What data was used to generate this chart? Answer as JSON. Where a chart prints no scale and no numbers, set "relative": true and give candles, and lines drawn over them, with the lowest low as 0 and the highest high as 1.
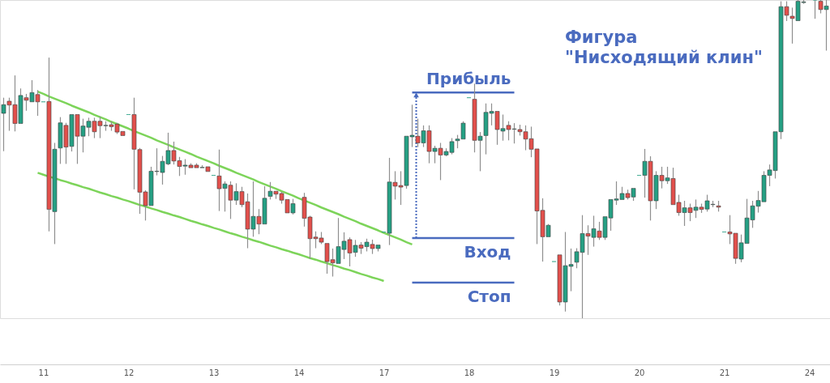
{
  "chart_data": {
    "type": "candlestick",
    "title": "Фигура\n\"Нисходящий клин\"",
    "relative": true,
    "tick_labels": "x",
    "categories": [
      null,
      null,
      null,
      null,
      null,
      null,
      null,
      "11",
      null,
      null,
      null,
      null,
      null,
      null,
      null,
      null,
      null,
      null,
      null,
      null,
      null,
      null,
      "12",
      null,
      null,
      null,
      null,
      null,
      null,
      null,
      null,
      null,
      null,
      null,
      null,
      null,
      null,
      "13",
      null,
      null,
      null,
      null,
      null,
      null,
      null,
      null,
      null,
      null,
      null,
      null,
      null,
      null,
      "14",
      null,
      null,
      null,
      null,
      null,
      null,
      null,
      null,
      null,
      null,
      null,
      null,
      null,
      null,
      "17",
      null,
      null,
      null,
      null,
      null,
      null,
      null,
      null,
      null,
      null,
      null,
      null,
      null,
      null,
      "18",
      null,
      null,
      null,
      null,
      null,
      null,
      null,
      null,
      null,
      null,
      null,
      null,
      null,
      null,
      "19",
      null,
      null,
      null,
      null,
      null,
      null,
      null,
      null,
      null,
      null,
      null,
      null,
      null,
      null,
      "20",
      null,
      null,
      null,
      null,
      null,
      null,
      null,
      null,
      null,
      null,
      null,
      null,
      null,
      null,
      "21",
      null,
      null,
      null,
      null,
      null,
      null,
      null,
      null,
      null,
      null,
      null,
      null,
      null,
      null,
      "24",
      null,
      null,
      null
    ],
    "ohlc": [
      [
        0.644,
        0.693,
        0.525,
        0.671
      ],
      [
        0.682,
        0.693,
        0.589,
        0.67
      ],
      [
        0.671,
        0.763,
        0.587,
        0.612
      ],
      [
        0.612,
        0.722,
        0.612,
        0.7
      ],
      [
        0.693,
        0.705,
        0.652,
        0.685
      ],
      [
        0.68,
        0.748,
        0.68,
        0.709
      ],
      [
        0.703,
        0.717,
        0.636,
        0.68
      ],
      [
        0.68,
        0.68,
        0.68,
        0.68
      ],
      [
        0.681,
        0.819,
        0.273,
        0.342
      ],
      [
        0.335,
        0.551,
        0.233,
        0.531
      ],
      [
        0.535,
        0.632,
        0.485,
        0.614
      ],
      [
        0.606,
        0.614,
        0.485,
        0.538
      ],
      [
        0.54,
        0.64,
        0.524,
        0.64
      ],
      [
        0.64,
        0.64,
        0.485,
        0.572
      ],
      [
        0.572,
        0.627,
        0.521,
        0.604
      ],
      [
        0.6,
        0.63,
        0.572,
        0.619
      ],
      [
        0.619,
        0.63,
        0.566,
        0.586
      ],
      [
        0.619,
        0.634,
        0.566,
        0.605
      ],
      [
        0.605,
        0.619,
        0.589,
        0.606
      ],
      [
        0.608,
        0.619,
        0.589,
        0.602
      ],
      [
        0.61,
        0.614,
        0.579,
        0.585
      ],
      [
        0.587,
        0.587,
        0.574,
        0.574
      ],
      [
        0.64,
        0.64,
        0.64,
        0.64
      ],
      [
        0.64,
        0.693,
        0.405,
        0.531
      ],
      [
        0.53,
        0.535,
        0.328,
        0.396
      ],
      [
        0.397,
        0.402,
        0.307,
        0.354
      ],
      [
        0.354,
        0.476,
        0.354,
        0.462
      ],
      [
        0.461,
        0.534,
        0.449,
        0.462
      ],
      [
        0.458,
        0.51,
        0.42,
        0.493
      ],
      [
        0.485,
        0.583,
        0.481,
        0.527
      ],
      [
        0.527,
        0.555,
        0.483,
        0.494
      ],
      [
        0.495,
        0.507,
        0.447,
        0.477
      ],
      [
        0.478,
        0.5,
        0.451,
        0.481
      ],
      [
        0.481,
        0.487,
        0.473,
        0.473
      ],
      [
        0.481,
        0.487,
        0.473,
        0.473
      ],
      [
        0.473,
        0.481,
        0.472,
        0.474
      ],
      [
        0.476,
        0.476,
        0.458,
        0.461
      ],
      [
        0.449,
        0.449,
        0.449,
        0.449
      ],
      [
        0.447,
        0.53,
        0.337,
        0.407
      ],
      [
        0.408,
        0.43,
        0.335,
        0.422
      ],
      [
        0.418,
        0.43,
        0.312,
        0.371
      ],
      [
        0.371,
        0.424,
        0.356,
        0.398
      ],
      [
        0.398,
        0.413,
        0.349,
        0.357
      ],
      [
        0.366,
        0.392,
        0.22,
        0.28
      ],
      [
        0.28,
        0.43,
        0.256,
        0.32
      ],
      [
        0.32,
        0.343,
        0.264,
        0.296
      ],
      [
        0.296,
        0.415,
        0.296,
        0.377
      ],
      [
        0.383,
        0.428,
        0.373,
        0.399
      ],
      [
        0.399,
        0.402,
        0.375,
        0.39
      ],
      [
        0.392,
        0.397,
        0.36,
        0.371
      ],
      [
        0.373,
        0.373,
        0.331,
        0.331
      ],
      [
        0.331,
        0.375,
        0.326,
        0.36
      ],
      null,
      [
        0.38,
        0.394,
        0.288,
        0.314
      ],
      [
        0.318,
        0.322,
        0.186,
        0.25
      ],
      [
        0.255,
        0.273,
        0.22,
        0.25
      ],
      [
        0.252,
        0.271,
        0.233,
        0.239
      ],
      [
        0.235,
        0.235,
        0.14,
        0.178
      ],
      [
        0.184,
        0.219,
        0.131,
        0.174
      ],
      [
        0.172,
        0.315,
        0.172,
        0.225
      ],
      [
        0.216,
        0.27,
        0.186,
        0.242
      ],
      [
        0.247,
        0.254,
        0.163,
        0.205
      ],
      [
        0.207,
        0.246,
        0.193,
        0.229
      ],
      [
        0.23,
        0.239,
        0.202,
        0.22
      ],
      [
        0.225,
        0.25,
        0.21,
        0.239
      ],
      [
        0.232,
        0.247,
        0.202,
        0.219
      ],
      [
        0.219,
        0.233,
        0.21,
        0.23
      ],
      [
        0.271,
        0.271,
        0.271,
        0.271
      ],
      [
        0.267,
        0.504,
        0.23,
        0.428
      ],
      [
        0.427,
        0.462,
        0.373,
        0.415
      ],
      [
        0.417,
        0.462,
        0.356,
        0.412
      ],
      [
        0.417,
        0.572,
        0.407,
        0.572
      ],
      [
        0.57,
        0.671,
        0.538,
        0.575
      ],
      [
        0.572,
        0.627,
        0.538,
        0.551
      ],
      [
        0.551,
        0.606,
        0.538,
        0.589
      ],
      [
        0.589,
        0.606,
        0.487,
        0.524
      ],
      [
        0.524,
        0.542,
        0.487,
        0.534
      ],
      [
        0.534,
        0.551,
        0.434,
        0.513
      ],
      [
        0.513,
        0.534,
        0.509,
        0.524
      ],
      [
        0.521,
        0.566,
        0.515,
        0.555
      ],
      [
        0.558,
        0.576,
        0.534,
        0.563
      ],
      [
        0.563,
        0.619,
        0.563,
        0.613
      ],
      [
        0.693,
        0.693,
        0.693,
        0.693
      ],
      [
        0.688,
        0.737,
        0.521,
        0.559
      ],
      [
        0.559,
        0.585,
        0.462,
        0.572
      ],
      [
        0.574,
        0.675,
        0.515,
        0.647
      ],
      [
        0.644,
        0.675,
        0.606,
        0.65
      ],
      [
        0.65,
        0.65,
        0.545,
        0.593
      ],
      [
        0.588,
        0.64,
        0.558,
        0.596
      ],
      [
        0.606,
        0.619,
        0.559,
        0.593
      ],
      [
        0.594,
        0.613,
        0.549,
        0.595
      ],
      [
        0.593,
        0.608,
        0.574,
        0.586
      ],
      [
        0.586,
        0.606,
        0.528,
        0.563
      ],
      [
        0.564,
        0.602,
        0.506,
        0.531
      ],
      [
        0.532,
        0.535,
        0.233,
        0.337
      ],
      [
        0.339,
        0.377,
        0.178,
        0.256
      ],
      [
        0.256,
        0.296,
        0.254,
        0.292
      ],
      [
        0.178,
        0.178,
        0.178,
        0.178
      ],
      [
        0.199,
        0.199,
        0.04,
        0.051
      ],
      [
        0.051,
        0.271,
        0.021,
        0.165
      ],
      [
        0.163,
        0.219,
        0.085,
        0.169
      ],
      [
        0.176,
        0.22,
        0.157,
        0.209
      ],
      [
        0.207,
        0.324,
        0.0,
        0.266
      ],
      [
        0.266,
        0.292,
        0.199,
        0.258
      ],
      [
        0.254,
        0.322,
        0.225,
        0.281
      ],
      [
        0.274,
        0.303,
        0.246,
        0.254
      ],
      [
        0.254,
        0.322,
        0.246,
        0.319
      ],
      [
        0.315,
        0.373,
        0.275,
        0.373
      ],
      [
        0.371,
        0.43,
        0.356,
        0.375
      ],
      [
        0.373,
        0.413,
        0.373,
        0.392
      ],
      [
        0.392,
        0.404,
        0.373,
        0.379
      ],
      [
        0.381,
        0.408,
        0.369,
        0.408
      ],
      [
        0.449,
        0.449,
        0.449,
        0.449
      ],
      [
        0.449,
        0.532,
        0.379,
        0.493
      ],
      [
        0.493,
        0.509,
        0.307,
        0.369
      ],
      [
        0.369,
        0.462,
        0.343,
        0.449
      ],
      [
        0.449,
        0.476,
        0.408,
        0.432
      ],
      [
        0.432,
        0.476,
        0.422,
        0.441
      ],
      [
        0.439,
        0.473,
        0.354,
        0.357
      ],
      [
        0.364,
        0.388,
        0.322,
        0.332
      ],
      [
        0.332,
        0.369,
        0.29,
        0.347
      ],
      [
        0.347,
        0.36,
        0.305,
        0.332
      ],
      [
        0.339,
        0.373,
        0.315,
        0.349
      ],
      [
        0.349,
        0.36,
        0.331,
        0.342
      ],
      [
        0.343,
        0.388,
        0.335,
        0.369
      ],
      [
        0.357,
        0.369,
        0.349,
        0.358
      ],
      [
        0.353,
        0.369,
        0.335,
        0.349
      ],
      [
        0.271,
        0.271,
        0.271,
        0.271
      ],
      [
        0.271,
        0.324,
        0.233,
        0.265
      ],
      [
        0.267,
        0.267,
        0.171,
        0.188
      ],
      [
        0.186,
        0.263,
        0.176,
        0.237
      ],
      [
        0.235,
        0.375,
        0.235,
        0.315
      ],
      [
        0.309,
        0.369,
        0.284,
        0.353
      ],
      [
        0.352,
        0.4,
        0.332,
        0.37
      ],
      [
        0.366,
        0.462,
        0.366,
        0.449
      ],
      [
        0.449,
        0.483,
        0.415,
        0.466
      ],
      [
        0.464,
        0.586,
        0.439,
        0.586
      ],
      [
        0.586,
        0.996,
        0.563,
        0.979
      ],
      [
        0.979,
        0.996,
        0.934,
        0.952
      ],
      [
        0.949,
        0.976,
        0.863,
        0.942
      ],
      [
        0.935,
        1.0,
        0.935,
        0.996
      ],
      [
        0.992,
        1.0,
        0.988,
        0.994
      ],
      null,
      [
        1.0,
        1.0,
        0.941,
        1.0
      ],
      [
        0.996,
        1.0,
        0.958,
        0.97
      ],
      [
        0.97,
        1.0,
        0.841,
        0.981
      ]
    ],
    "colors": [
      "#26a084",
      "#e2504c",
      "#e2504c",
      "#26a084",
      "#e2504c",
      "#26a084",
      "#e2504c",
      "#26a084",
      "#e2504c",
      "#26a084",
      "#26a084",
      "#e2504c",
      "#26a084",
      "#e2504c",
      "#26a084",
      "#26a084",
      "#e2504c",
      "#e2504c",
      "#26a084",
      "#e2504c",
      "#e2504c",
      "#e2504c",
      "#26a084",
      "#e2504c",
      "#e2504c",
      "#e2504c",
      "#26a084",
      "#26a084",
      "#26a084",
      "#26a084",
      "#e2504c",
      "#e2504c",
      "#26a084",
      "#e2504c",
      "#e2504c",
      "#26a084",
      "#e2504c",
      "#26a084",
      "#e2504c",
      "#26a084",
      "#e2504c",
      "#26a084",
      "#e2504c",
      "#e2504c",
      "#26a084",
      "#e2504c",
      "#26a084",
      "#26a084",
      "#e2504c",
      "#e2504c",
      "#e2504c",
      "#26a084",
      null,
      "#e2504c",
      "#e2504c",
      "#e2504c",
      "#e2504c",
      "#e2504c",
      "#e2504c",
      "#26a084",
      "#26a084",
      "#e2504c",
      "#26a084",
      "#e2504c",
      "#26a084",
      "#e2504c",
      "#26a084",
      "#26a084",
      "#26a084",
      "#e2504c",
      "#e2504c",
      "#26a084",
      "#26a084",
      "#e2504c",
      "#26a084",
      "#e2504c",
      "#26a084",
      "#e2504c",
      "#26a084",
      "#26a084",
      "#26a084",
      "#26a084",
      "#26a084",
      "#e2504c",
      "#26a084",
      "#26a084",
      "#26a084",
      "#e2504c",
      "#26a084",
      "#e2504c",
      "#26a084",
      "#e2504c",
      "#e2504c",
      "#e2504c",
      "#e2504c",
      "#e2504c",
      "#26a084",
      "#26a084",
      "#e2504c",
      "#26a084",
      "#26a084",
      "#26a084",
      "#26a084",
      "#e2504c",
      "#26a084",
      "#e2504c",
      "#26a084",
      "#26a084",
      "#26a084",
      "#26a084",
      "#e2504c",
      "#26a084",
      "#26a084",
      "#26a084",
      "#e2504c",
      "#26a084",
      "#e2504c",
      "#26a084",
      "#e2504c",
      "#e2504c",
      "#26a084",
      "#e2504c",
      "#26a084",
      "#e2504c",
      "#26a084",
      "#26a084",
      "#e2504c",
      "#26a084",
      "#e2504c",
      "#e2504c",
      "#26a084",
      "#26a084",
      "#26a084",
      "#26a084",
      "#26a084",
      "#26a084",
      "#26a084",
      "#26a084",
      "#e2504c",
      "#e2504c",
      "#26a084",
      "#26a084",
      null,
      "#26a084",
      "#e2504c",
      "#26a084"
    ],
    "series": [
      {
        "type": "line",
        "color": "#7dd45a",
        "values": [
          null,
          null,
          null,
          null,
          null,
          null,
          0.712,
          0.705,
          0.697,
          0.69,
          0.683,
          0.676,
          0.668,
          0.661,
          0.654,
          0.647,
          0.639,
          0.632,
          0.625,
          0.617,
          0.61,
          0.603,
          0.596,
          0.588,
          0.581,
          0.574,
          0.567,
          0.559,
          0.552,
          0.545,
          0.537,
          0.53,
          0.523,
          0.516,
          0.508,
          0.501,
          0.494,
          0.487,
          0.479,
          0.472,
          0.465,
          0.457,
          0.45,
          0.443,
          0.436,
          0.428,
          0.421,
          0.414,
          0.407,
          0.399,
          0.392,
          0.385,
          0.377,
          0.37,
          0.363,
          0.356,
          0.348,
          0.341,
          0.334,
          0.327,
          0.319,
          0.312,
          0.305,
          0.297,
          0.29,
          0.283,
          0.276,
          0.268,
          0.261,
          0.254,
          0.247,
          0.239,
          0.232,
          null,
          null,
          null,
          null,
          null,
          null,
          null,
          null,
          null,
          null,
          null,
          null,
          null,
          null,
          null,
          null,
          null,
          null,
          null,
          null,
          null,
          null,
          null,
          null,
          null,
          null,
          null,
          null,
          null,
          null,
          null,
          null,
          null,
          null,
          null,
          null,
          null,
          null,
          null,
          null,
          null,
          null,
          null,
          null,
          null,
          null,
          null,
          null,
          null,
          null,
          null,
          null,
          null,
          null,
          null,
          null,
          null,
          null,
          null,
          null,
          null,
          null,
          null,
          null,
          null,
          null,
          null,
          null,
          null,
          null,
          null,
          null,
          null
        ]
      },
      {
        "type": "line",
        "color": "#7dd45a",
        "values": [
          null,
          null,
          null,
          null,
          null,
          null,
          0.457,
          0.451,
          0.445,
          0.44,
          0.434,
          0.429,
          0.423,
          0.418,
          0.412,
          0.407,
          0.401,
          0.395,
          0.39,
          0.384,
          0.379,
          0.373,
          0.368,
          0.362,
          0.356,
          0.351,
          0.345,
          0.34,
          0.334,
          0.329,
          0.323,
          0.318,
          0.312,
          0.306,
          0.301,
          0.295,
          0.29,
          0.284,
          0.279,
          0.273,
          0.267,
          0.262,
          0.256,
          0.251,
          0.245,
          0.24,
          0.234,
          0.228,
          0.223,
          0.217,
          0.212,
          0.206,
          0.201,
          0.195,
          0.189,
          0.184,
          0.178,
          0.173,
          0.167,
          0.162,
          0.156,
          0.151,
          0.145,
          0.139,
          0.134,
          0.128,
          0.123,
          0.117,
          null,
          null,
          null,
          null,
          null,
          null,
          null,
          null,
          null,
          null,
          null,
          null,
          null,
          null,
          null,
          null,
          null,
          null,
          null,
          null,
          null,
          null,
          null,
          null,
          null,
          null,
          null,
          null,
          null,
          null,
          null,
          null,
          null,
          null,
          null,
          null,
          null,
          null,
          null,
          null,
          null,
          null,
          null,
          null,
          null,
          null,
          null,
          null,
          null,
          null,
          null,
          null,
          null,
          null,
          null,
          null,
          null,
          null,
          null,
          null,
          null,
          null,
          null,
          null,
          null,
          null,
          null,
          null,
          null,
          null,
          null,
          null,
          null,
          null,
          null,
          null,
          null,
          null
        ]
      },
      {
        "type": "line",
        "name": "Прибыль",
        "color": "#4a6bbf",
        "values": [
          null,
          null,
          null,
          null,
          null,
          null,
          null,
          null,
          null,
          null,
          null,
          null,
          null,
          null,
          null,
          null,
          null,
          null,
          null,
          null,
          null,
          null,
          null,
          null,
          null,
          null,
          null,
          null,
          null,
          null,
          null,
          null,
          null,
          null,
          null,
          null,
          null,
          null,
          null,
          null,
          null,
          null,
          null,
          null,
          null,
          null,
          null,
          null,
          null,
          null,
          null,
          null,
          null,
          null,
          null,
          null,
          null,
          null,
          null,
          null,
          null,
          null,
          null,
          null,
          null,
          null,
          null,
          null,
          null,
          null,
          null,
          null,
          0.709,
          0.709,
          0.709,
          0.709,
          0.709,
          0.709,
          0.709,
          0.709,
          0.709,
          0.709,
          0.709,
          0.709,
          0.709,
          0.709,
          0.709,
          0.709,
          0.709,
          0.709,
          0.709,
          null,
          null,
          null,
          null,
          null,
          null,
          null,
          null,
          null,
          null,
          null,
          null,
          null,
          null,
          null,
          null,
          null,
          null,
          null,
          null,
          null,
          null,
          null,
          null,
          null,
          null,
          null,
          null,
          null,
          null,
          null,
          null,
          null,
          null,
          null,
          null,
          null,
          null,
          null,
          null,
          null,
          null,
          null,
          null,
          null,
          null,
          null,
          null,
          null,
          null,
          null,
          null,
          null,
          null,
          null
        ]
      },
      {
        "type": "line",
        "name": "Вход",
        "color": "#4a6bbf",
        "values": [
          null,
          null,
          null,
          null,
          null,
          null,
          null,
          null,
          null,
          null,
          null,
          null,
          null,
          null,
          null,
          null,
          null,
          null,
          null,
          null,
          null,
          null,
          null,
          null,
          null,
          null,
          null,
          null,
          null,
          null,
          null,
          null,
          null,
          null,
          null,
          null,
          null,
          null,
          null,
          null,
          null,
          null,
          null,
          null,
          null,
          null,
          null,
          null,
          null,
          null,
          null,
          null,
          null,
          null,
          null,
          null,
          null,
          null,
          null,
          null,
          null,
          null,
          null,
          null,
          null,
          null,
          null,
          null,
          null,
          null,
          null,
          null,
          0.252,
          0.252,
          0.252,
          0.252,
          0.252,
          0.252,
          0.252,
          0.252,
          0.252,
          0.252,
          0.252,
          0.252,
          0.252,
          0.252,
          0.252,
          0.252,
          0.252,
          0.252,
          0.252,
          null,
          null,
          null,
          null,
          null,
          null,
          null,
          null,
          null,
          null,
          null,
          null,
          null,
          null,
          null,
          null,
          null,
          null,
          null,
          null,
          null,
          null,
          null,
          null,
          null,
          null,
          null,
          null,
          null,
          null,
          null,
          null,
          null,
          null,
          null,
          null,
          null,
          null,
          null,
          null,
          null,
          null,
          null,
          null,
          null,
          null,
          null,
          null,
          null,
          null,
          null,
          null,
          null,
          null,
          null
        ]
      },
      {
        "type": "line",
        "name": "Стоп",
        "color": "#4a6bbf",
        "values": [
          null,
          null,
          null,
          null,
          null,
          null,
          null,
          null,
          null,
          null,
          null,
          null,
          null,
          null,
          null,
          null,
          null,
          null,
          null,
          null,
          null,
          null,
          null,
          null,
          null,
          null,
          null,
          null,
          null,
          null,
          null,
          null,
          null,
          null,
          null,
          null,
          null,
          null,
          null,
          null,
          null,
          null,
          null,
          null,
          null,
          null,
          null,
          null,
          null,
          null,
          null,
          null,
          null,
          null,
          null,
          null,
          null,
          null,
          null,
          null,
          null,
          null,
          null,
          null,
          null,
          null,
          null,
          null,
          null,
          null,
          null,
          null,
          0.112,
          0.112,
          0.112,
          0.112,
          0.112,
          0.112,
          0.112,
          0.112,
          0.112,
          0.112,
          0.112,
          0.112,
          0.112,
          0.112,
          0.112,
          0.112,
          0.112,
          0.112,
          0.112,
          null,
          null,
          null,
          null,
          null,
          null,
          null,
          null,
          null,
          null,
          null,
          null,
          null,
          null,
          null,
          null,
          null,
          null,
          null,
          null,
          null,
          null,
          null,
          null,
          null,
          null,
          null,
          null,
          null,
          null,
          null,
          null,
          null,
          null,
          null,
          null,
          null,
          null,
          null,
          null,
          null,
          null,
          null,
          null,
          null,
          null,
          null,
          null,
          null,
          null,
          null,
          null,
          null,
          null,
          null
        ]
      }
    ]
  }
}
